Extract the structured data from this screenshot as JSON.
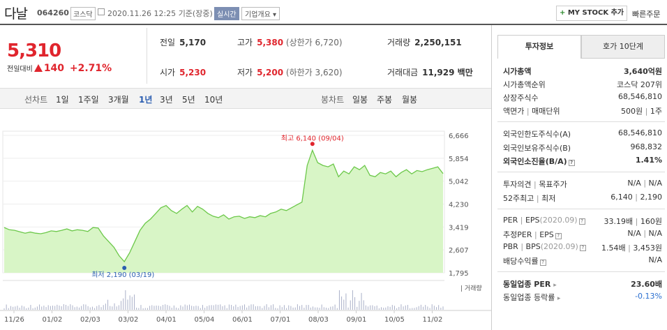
{
  "header": {
    "name": "다날",
    "code": "064260",
    "market": "코스닥",
    "datetime": "2020.11.26 12:25",
    "basis": "기준(장중)",
    "realtime": "실시간",
    "company_overview": "기업개요",
    "my_stock": "MY STOCK 추가",
    "quick_order": "빠른주문"
  },
  "price": {
    "current": "5,310",
    "change_label": "전일대비",
    "change": "140",
    "change_pct": "+2.71%"
  },
  "quote": {
    "prev_label": "전일",
    "prev": "5,170",
    "high_label": "고가",
    "high": "5,380",
    "upper_limit": "(상한가 6,720)",
    "volume_label": "거래량",
    "volume": "2,250,151",
    "open_label": "시가",
    "open": "5,230",
    "low_label": "저가",
    "low": "5,200",
    "lower_limit": "(하한가 3,620)",
    "amount_label": "거래대금",
    "amount": "11,929 백만"
  },
  "period": {
    "line_chart": "선차트",
    "items": [
      "1일",
      "1주일",
      "3개월",
      "1년",
      "3년",
      "5년",
      "10년"
    ],
    "selected": "1년",
    "candle_chart": "봉차트",
    "candle_items": [
      "일봉",
      "주봉",
      "월봉"
    ]
  },
  "chart_data": {
    "type": "area",
    "y_ticks": [
      "6,666",
      "5,854",
      "5,042",
      "4,230",
      "3,419",
      "2,607",
      "1,795"
    ],
    "ylim": [
      1795,
      6666
    ],
    "x_ticks": [
      "11/26",
      "01/02",
      "02/03",
      "03/02",
      "04/01",
      "05/04",
      "06/01",
      "07/01",
      "08/03",
      "09/01",
      "10/05",
      "11/02"
    ],
    "high_label": "최고 6,140 (09/04)",
    "low_label": "최저 2,190 (03/19)",
    "volume_label": "거래량",
    "values": [
      3400,
      3320,
      3300,
      3250,
      3200,
      3240,
      3200,
      3180,
      3220,
      3280,
      3260,
      3300,
      3350,
      3280,
      3320,
      3300,
      3260,
      3400,
      3380,
      3100,
      2900,
      2700,
      2400,
      2190,
      2500,
      2900,
      3300,
      3550,
      3700,
      3900,
      4100,
      4180,
      4000,
      3900,
      4050,
      4180,
      3950,
      4150,
      4050,
      3900,
      3800,
      3750,
      3850,
      3700,
      3780,
      3800,
      3720,
      3780,
      3750,
      3820,
      3780,
      3900,
      3950,
      4050,
      4000,
      4100,
      4200,
      4300,
      5600,
      6140,
      5700,
      5600,
      5550,
      5650,
      5200,
      5400,
      5300,
      5550,
      5450,
      5600,
      5250,
      5200,
      5350,
      5300,
      5400,
      5200,
      5350,
      5450,
      5300,
      5420,
      5380,
      5450,
      5500,
      5550,
      5310
    ]
  },
  "invest": {
    "tab_active": "투자정보",
    "tab_other": "호가 10단계",
    "market_cap_label": "시가총액",
    "market_cap": "3,640억원",
    "market_cap_rank_label": "시가총액순위",
    "market_cap_rank": "코스닥 207위",
    "shares_label": "상장주식수",
    "shares": "68,546,810",
    "par_label": "액면가",
    "unit_label": "매매단위",
    "par": "500원",
    "unit": "1주",
    "foreign_limit_label": "외국인한도주식수(A)",
    "foreign_limit": "68,546,810",
    "foreign_hold_label": "외국인보유주식수(B)",
    "foreign_hold": "968,832",
    "foreign_ratio_label": "외국인소진율(B/A)",
    "foreign_ratio": "1.41%",
    "opinion_label": "투자의견",
    "target_label": "목표주가",
    "opinion": "N/A",
    "target": "N/A",
    "w52_high_label": "52주최고",
    "w52_low_label": "최저",
    "w52_high": "6,140",
    "w52_low": "2,190",
    "per_label": "PER",
    "eps_label": "EPS",
    "eps_period": "(2020.09)",
    "per": "33.19배",
    "eps": "160원",
    "est_per_label": "추정PER",
    "est_eps_label": "EPS",
    "est_per": "N/A",
    "est_eps": "N/A",
    "pbr_label": "PBR",
    "bps_label": "BPS",
    "bps_period": "(2020.09)",
    "pbr": "1.54배",
    "bps": "3,453원",
    "dividend_label": "배당수익률",
    "dividend": "N/A",
    "industry_per_label": "동일업종 PER",
    "industry_per": "23.60배",
    "industry_change_label": "동일업종 등락률",
    "industry_change": "-0.13%"
  }
}
